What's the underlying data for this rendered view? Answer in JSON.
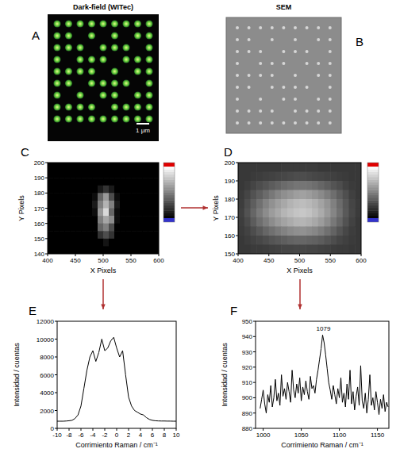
{
  "chart_data": [
    {
      "type": "image",
      "panel": "A",
      "title": "Dark-field (WITec)",
      "annotation": "1 μm"
    },
    {
      "type": "image",
      "panel": "B",
      "title": "SEM"
    },
    {
      "type": "heatmap",
      "panel": "C",
      "x_label": "X Pixels",
      "y_label": "Y Pixels",
      "xlim": [
        400,
        600
      ],
      "xticks": [
        400,
        450,
        500,
        550,
        600
      ],
      "ylim": [
        140,
        200
      ],
      "yticks": [
        140,
        150,
        160,
        170,
        180,
        190,
        200
      ],
      "zlim": [
        0,
        100
      ],
      "cells": [
        [
          0,
          0,
          0,
          0,
          0,
          0,
          0,
          0,
          0,
          0,
          0,
          0,
          0,
          0,
          0,
          0,
          0,
          0,
          0,
          0
        ],
        [
          0,
          0,
          0,
          0,
          0,
          0,
          0,
          0,
          0,
          0,
          0,
          0,
          0,
          0,
          0,
          0,
          0,
          0,
          0,
          0
        ],
        [
          0,
          0,
          0,
          0,
          0,
          0,
          0,
          0,
          0,
          0,
          0,
          0,
          0,
          0,
          0,
          0,
          0,
          0,
          0,
          0
        ],
        [
          0,
          0,
          0,
          0,
          0,
          0,
          0,
          0,
          0,
          10,
          20,
          10,
          0,
          0,
          0,
          0,
          0,
          0,
          0,
          0
        ],
        [
          0,
          0,
          0,
          0,
          0,
          0,
          0,
          0,
          5,
          40,
          60,
          30,
          5,
          0,
          0,
          0,
          0,
          0,
          0,
          0
        ],
        [
          0,
          0,
          0,
          0,
          0,
          0,
          0,
          0,
          10,
          50,
          70,
          50,
          10,
          0,
          0,
          0,
          0,
          0,
          0,
          0
        ],
        [
          0,
          0,
          0,
          0,
          0,
          0,
          0,
          0,
          5,
          60,
          85,
          40,
          5,
          0,
          0,
          0,
          0,
          0,
          0,
          0
        ],
        [
          0,
          0,
          0,
          0,
          0,
          0,
          0,
          0,
          0,
          50,
          65,
          55,
          5,
          0,
          0,
          0,
          0,
          0,
          0,
          0
        ],
        [
          0,
          0,
          0,
          0,
          0,
          0,
          0,
          0,
          0,
          40,
          50,
          30,
          0,
          0,
          0,
          0,
          0,
          0,
          0,
          0
        ],
        [
          0,
          0,
          0,
          0,
          0,
          0,
          0,
          0,
          0,
          20,
          30,
          20,
          0,
          0,
          0,
          0,
          0,
          0,
          0,
          0
        ],
        [
          0,
          0,
          0,
          0,
          0,
          0,
          0,
          0,
          0,
          0,
          8,
          0,
          0,
          0,
          0,
          0,
          0,
          0,
          0,
          0
        ],
        [
          0,
          0,
          0,
          0,
          0,
          0,
          0,
          0,
          0,
          0,
          0,
          0,
          0,
          0,
          0,
          0,
          0,
          0,
          0,
          0
        ]
      ]
    },
    {
      "type": "heatmap",
      "panel": "D",
      "x_label": "X Pixels",
      "y_label": "Y Pixels",
      "xlim": [
        400,
        600
      ],
      "xticks": [
        400,
        450,
        500,
        550,
        600
      ],
      "ylim": [
        150,
        200
      ],
      "yticks": [
        150,
        160,
        170,
        180,
        190,
        200
      ],
      "zlim": [
        0,
        100
      ],
      "cells": [
        [
          22,
          22,
          22,
          22,
          22,
          22,
          22,
          23,
          23,
          23,
          23,
          23,
          23,
          22,
          22,
          22,
          22,
          22,
          22,
          22
        ],
        [
          22,
          22,
          23,
          24,
          25,
          26,
          27,
          28,
          29,
          30,
          30,
          29,
          28,
          27,
          26,
          25,
          24,
          23,
          22,
          22
        ],
        [
          22,
          24,
          27,
          30,
          33,
          36,
          39,
          42,
          44,
          46,
          46,
          45,
          43,
          40,
          37,
          33,
          30,
          26,
          23,
          22
        ],
        [
          23,
          27,
          32,
          37,
          42,
          47,
          52,
          56,
          59,
          62,
          63,
          61,
          58,
          54,
          49,
          43,
          37,
          31,
          25,
          22
        ],
        [
          24,
          30,
          37,
          44,
          51,
          57,
          62,
          66,
          70,
          73,
          74,
          72,
          69,
          64,
          58,
          50,
          42,
          34,
          27,
          23
        ],
        [
          25,
          32,
          40,
          48,
          55,
          61,
          66,
          71,
          74,
          77,
          78,
          76,
          72,
          67,
          60,
          52,
          44,
          35,
          28,
          23
        ],
        [
          24,
          29,
          36,
          43,
          49,
          55,
          60,
          64,
          67,
          70,
          71,
          69,
          66,
          61,
          55,
          47,
          40,
          32,
          26,
          22
        ],
        [
          23,
          26,
          30,
          35,
          40,
          44,
          48,
          51,
          54,
          56,
          57,
          55,
          53,
          49,
          44,
          39,
          33,
          28,
          24,
          22
        ],
        [
          22,
          24,
          26,
          28,
          30,
          33,
          35,
          37,
          39,
          40,
          40,
          39,
          38,
          36,
          33,
          30,
          27,
          25,
          23,
          22
        ],
        [
          22,
          22,
          23,
          23,
          24,
          25,
          26,
          27,
          27,
          28,
          28,
          27,
          27,
          26,
          25,
          24,
          23,
          23,
          22,
          22
        ]
      ]
    },
    {
      "type": "line",
      "panel": "E",
      "x_label": "Corrimiento Raman / cm⁻¹",
      "y_label": "Intensidad / cuentas",
      "xlim": [
        -10,
        10
      ],
      "xticks": [
        -10,
        -8,
        -6,
        -4,
        -2,
        0,
        2,
        4,
        6,
        8,
        10
      ],
      "ylim": [
        0,
        12000
      ],
      "yticks": [
        0,
        2000,
        4000,
        6000,
        8000,
        10000,
        12000
      ],
      "color": "#000000",
      "x": [
        -10,
        -9.5,
        -9,
        -8.5,
        -8,
        -7.5,
        -7,
        -6.5,
        -6,
        -5.5,
        -5,
        -4.5,
        -4,
        -3.5,
        -3,
        -2.5,
        -2,
        -1.5,
        -1,
        -0.5,
        0,
        0.5,
        1,
        1.5,
        2,
        2.5,
        3,
        3.5,
        4,
        4.5,
        5,
        5.5,
        6,
        6.5,
        7,
        7.5,
        8,
        8.5,
        9,
        9.5,
        10
      ],
      "values": [
        800,
        800,
        800,
        820,
        850,
        900,
        1100,
        1500,
        2500,
        4500,
        6500,
        8000,
        8700,
        7500,
        8500,
        10000,
        8700,
        9000,
        9800,
        10200,
        9000,
        8000,
        8700,
        6000,
        3500,
        2500,
        2000,
        1800,
        1600,
        1500,
        1200,
        1000,
        900,
        850,
        830,
        820,
        820,
        810,
        810,
        800,
        800
      ]
    },
    {
      "type": "line",
      "panel": "F",
      "x_label": "Corrimiento Raman / cm⁻¹",
      "y_label": "Intensidad / cuentas",
      "xlim": [
        990,
        1165
      ],
      "xticks": [
        1000,
        1050,
        1100,
        1150
      ],
      "ylim": [
        880,
        950
      ],
      "yticks": [
        880,
        890,
        900,
        910,
        920,
        930,
        940,
        950
      ],
      "color": "#000000",
      "annotations": [
        {
          "text": "1079",
          "x": 1079,
          "y": 944
        }
      ],
      "x": [
        996,
        998,
        1000,
        1002,
        1004,
        1006,
        1008,
        1010,
        1012,
        1014,
        1016,
        1018,
        1020,
        1022,
        1024,
        1026,
        1028,
        1030,
        1032,
        1034,
        1036,
        1038,
        1040,
        1042,
        1044,
        1046,
        1048,
        1050,
        1052,
        1054,
        1056,
        1058,
        1060,
        1062,
        1064,
        1066,
        1068,
        1070,
        1072,
        1074,
        1076,
        1078,
        1080,
        1082,
        1084,
        1086,
        1088,
        1090,
        1092,
        1094,
        1096,
        1098,
        1100,
        1102,
        1104,
        1106,
        1108,
        1110,
        1112,
        1114,
        1116,
        1118,
        1120,
        1122,
        1124,
        1126,
        1128,
        1130,
        1132,
        1134,
        1136,
        1138,
        1140,
        1142,
        1144,
        1146,
        1148,
        1150,
        1152,
        1154,
        1156,
        1158,
        1160,
        1162,
        1164
      ],
      "values": [
        893,
        899,
        905,
        896,
        890,
        902,
        897,
        908,
        894,
        900,
        912,
        898,
        903,
        895,
        915,
        901,
        906,
        899,
        910,
        904,
        897,
        918,
        905,
        900,
        909,
        903,
        913,
        898,
        907,
        902,
        911,
        904,
        899,
        914,
        906,
        908,
        903,
        912,
        918,
        925,
        932,
        941,
        936,
        928,
        919,
        910,
        905,
        899,
        908,
        902,
        896,
        906,
        900,
        913,
        897,
        903,
        894,
        909,
        899,
        918,
        896,
        904,
        892,
        901,
        907,
        895,
        921,
        898,
        893,
        903,
        890,
        899,
        915,
        895,
        900,
        892,
        904,
        897,
        889,
        899,
        893,
        902,
        891,
        897,
        894
      ]
    }
  ]
}
